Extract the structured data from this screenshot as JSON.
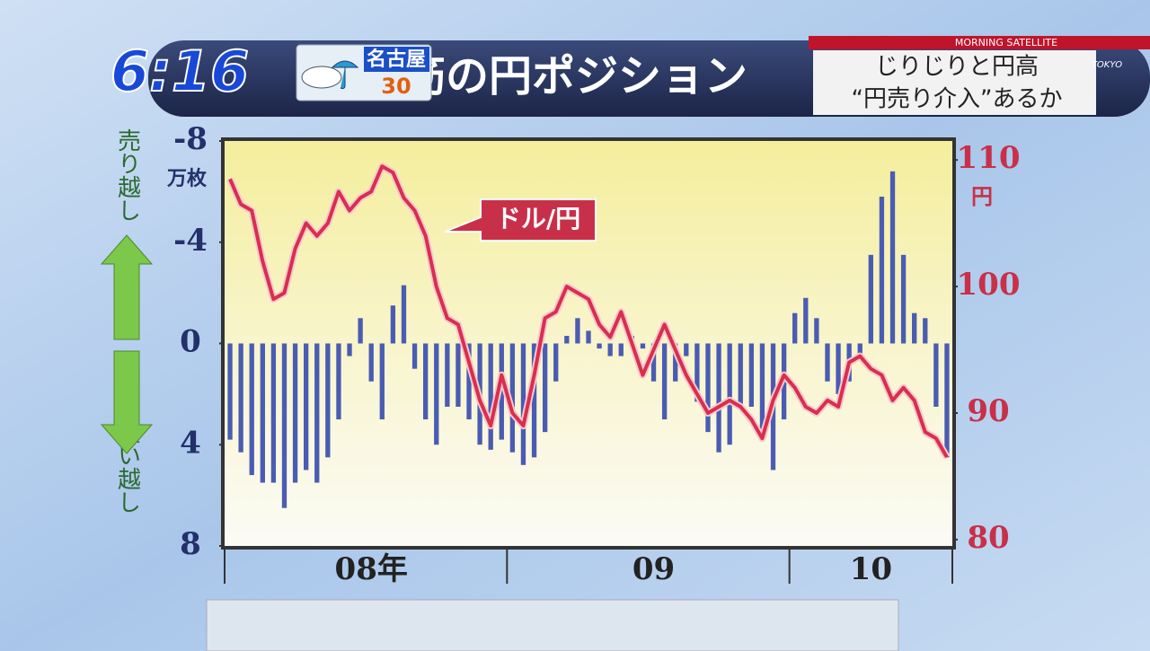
{
  "clock": "6:16",
  "weather": {
    "city": "名古屋",
    "temperature": "30"
  },
  "headline": "筋の円ポジション",
  "program": "MORNING SATELLITE",
  "channel": "TOKYO",
  "subheadline": [
    "じりじりと円高",
    "“円売り介入”あるか"
  ],
  "chart_data": {
    "type": "bar-line",
    "y_label": "万枚",
    "y2_label": "円",
    "y_upper_label": "売り越し",
    "y_lower_label": "買い越し",
    "annotation": "ドル/円",
    "categories": [
      null,
      null,
      null,
      null,
      null,
      null,
      null,
      null,
      null,
      null,
      null,
      null,
      null,
      "08年",
      null,
      null,
      null,
      null,
      null,
      null,
      null,
      null,
      null,
      null,
      null,
      null,
      null,
      null,
      null,
      null,
      null,
      null,
      null,
      null,
      null,
      null,
      null,
      null,
      null,
      "09",
      null,
      null,
      null,
      null,
      null,
      null,
      null,
      null,
      null,
      null,
      null,
      null,
      null,
      null,
      null,
      null,
      null,
      null,
      null,
      "10",
      null,
      null,
      null,
      null,
      null,
      null,
      null
    ],
    "series": [
      {
        "color": "#4a5cb2",
        "axis": "y",
        "values": [
          3.8,
          4.3,
          5.2,
          5.5,
          5.5,
          6.5,
          5.5,
          5.0,
          5.5,
          4.5,
          3.0,
          0.5,
          -1.0,
          1.5,
          3.0,
          -1.5,
          -2.3,
          1.0,
          3.0,
          4.0,
          2.5,
          2.5,
          3.0,
          4.0,
          4.2,
          3.8,
          4.3,
          4.8,
          4.5,
          3.5,
          1.5,
          -0.3,
          -1.0,
          -0.5,
          0.2,
          0.5,
          0.5,
          -0.3,
          0.2,
          1.5,
          3.0,
          1.5,
          0.5,
          2.3,
          3.5,
          4.3,
          4.0,
          2.5,
          2.5,
          3.5,
          5.0,
          3.0,
          -1.2,
          -1.8,
          -1.0,
          1.5,
          2.0,
          1.5,
          0.5,
          -3.5,
          -5.8,
          -6.8,
          -3.5,
          -1.2,
          -1.0,
          2.5,
          4.5
        ]
      },
      {
        "name": "ドル/円",
        "color": "#d8304c",
        "axis": "y2",
        "values": [
          108.5,
          106.5,
          106,
          102,
          99,
          99.5,
          103,
          105,
          104,
          105,
          107.5,
          106,
          107,
          107.5,
          109.5,
          109,
          107,
          106,
          104,
          100,
          97.5,
          97,
          94,
          91,
          89,
          93,
          90,
          89,
          93,
          97.5,
          98,
          100,
          99.5,
          99,
          97,
          96,
          98,
          95.5,
          93,
          95,
          97,
          95,
          93,
          91.5,
          90,
          90.5,
          91,
          90.5,
          89.5,
          88,
          91,
          93,
          92,
          90.5,
          90,
          91,
          90.5,
          94,
          94.5,
          93.5,
          93,
          91,
          92,
          91,
          88.5,
          88,
          86.5
        ]
      }
    ],
    "ylim": [
      8,
      -8
    ],
    "yticks": [
      -8,
      -4,
      0,
      4,
      8
    ],
    "y2lim": [
      79.5,
      111.5
    ],
    "y2ticks": [
      80,
      90,
      100,
      110
    ]
  }
}
